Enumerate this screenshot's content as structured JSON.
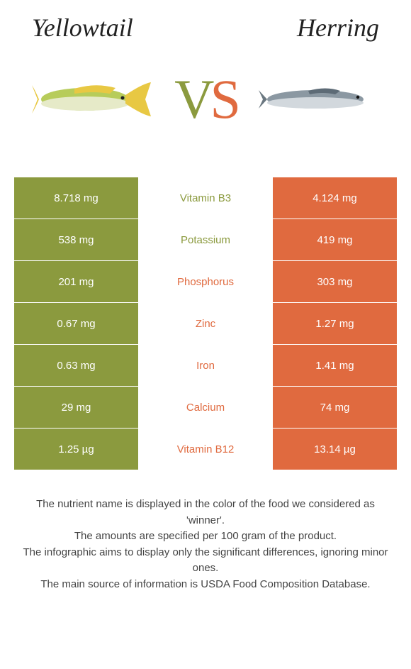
{
  "titles": {
    "left": "Yellowtail",
    "right": "Herring"
  },
  "vs": {
    "v": "V",
    "s": "S"
  },
  "colors": {
    "green": "#8b9a3e",
    "orange": "#e06a3f"
  },
  "rows": [
    {
      "left": "8.718 mg",
      "label": "Vitamin B3",
      "right": "4.124 mg",
      "label_color": "#8b9a3e"
    },
    {
      "left": "538 mg",
      "label": "Potassium",
      "right": "419 mg",
      "label_color": "#8b9a3e"
    },
    {
      "left": "201 mg",
      "label": "Phosphorus",
      "right": "303 mg",
      "label_color": "#e06a3f"
    },
    {
      "left": "0.67 mg",
      "label": "Zinc",
      "right": "1.27 mg",
      "label_color": "#e06a3f"
    },
    {
      "left": "0.63 mg",
      "label": "Iron",
      "right": "1.41 mg",
      "label_color": "#e06a3f"
    },
    {
      "left": "29 mg",
      "label": "Calcium",
      "right": "74 mg",
      "label_color": "#e06a3f"
    },
    {
      "left": "1.25 µg",
      "label": "Vitamin B12",
      "right": "13.14 µg",
      "label_color": "#e06a3f"
    }
  ],
  "footer": {
    "l1": "The nutrient name is displayed in the color of the food we considered as 'winner'.",
    "l2": "The amounts are specified per 100 gram of the product.",
    "l3": "The infographic aims to display only the significant differences, ignoring minor ones.",
    "l4": "The main source of information is USDA Food Composition Database."
  },
  "fish_images": {
    "yellowtail_name": "yellowtail-fish-image",
    "herring_name": "herring-fish-image"
  }
}
